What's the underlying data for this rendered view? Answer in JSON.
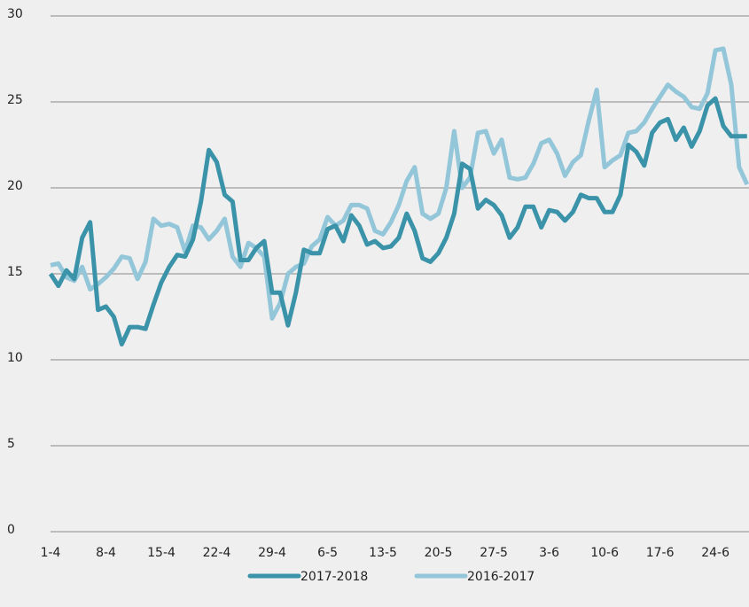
{
  "chart_data": {
    "type": "line",
    "categories": [
      "1-4",
      null,
      null,
      null,
      null,
      null,
      null,
      "8-4",
      null,
      null,
      null,
      null,
      null,
      null,
      "15-4",
      null,
      null,
      null,
      null,
      null,
      null,
      "22-4",
      null,
      null,
      null,
      null,
      null,
      null,
      "29-4",
      null,
      null,
      null,
      null,
      null,
      null,
      "6-5",
      null,
      null,
      null,
      null,
      null,
      null,
      "13-5",
      null,
      null,
      null,
      null,
      null,
      null,
      "20-5",
      null,
      null,
      null,
      null,
      null,
      null,
      "27-5",
      null,
      null,
      null,
      null,
      null,
      null,
      "3-6",
      null,
      null,
      null,
      null,
      null,
      null,
      "10-6",
      null,
      null,
      null,
      null,
      null,
      null,
      "17-6",
      null,
      null,
      null,
      null,
      null,
      null,
      "24-6",
      null,
      null,
      null,
      null
    ],
    "series": [
      {
        "name": "2017-2018",
        "color": "#3a93a8",
        "values": [
          15.0,
          14.3,
          15.2,
          14.7,
          17.1,
          18.0,
          12.9,
          13.1,
          12.5,
          10.9,
          11.9,
          11.9,
          11.8,
          13.2,
          14.5,
          15.4,
          16.1,
          16.0,
          17.0,
          19.2,
          22.2,
          21.5,
          19.6,
          19.2,
          15.8,
          15.8,
          16.5,
          16.9,
          13.9,
          13.9,
          12.0,
          13.9,
          16.4,
          16.2,
          16.2,
          17.6,
          17.8,
          16.9,
          18.4,
          17.8,
          16.7,
          16.9,
          16.5,
          16.6,
          17.1,
          18.5,
          17.5,
          15.9,
          15.7,
          16.2,
          17.1,
          18.5,
          21.4,
          21.1,
          18.8,
          19.3,
          19.0,
          18.4,
          17.1,
          17.7,
          18.9,
          18.9,
          17.7,
          18.7,
          18.6,
          18.1,
          18.6,
          19.6,
          19.4,
          19.4,
          18.6,
          18.6,
          19.6,
          22.5,
          22.1,
          21.3,
          23.2,
          23.8,
          24.0,
          22.8,
          23.5,
          22.4,
          23.3,
          24.8,
          25.2,
          23.6,
          23.0,
          23.0,
          23.0
        ]
      },
      {
        "name": "2016-2017",
        "color": "#93c6d9",
        "values": [
          15.5,
          15.6,
          14.8,
          14.6,
          15.4,
          14.1,
          14.4,
          14.8,
          15.3,
          16.0,
          15.9,
          14.7,
          15.7,
          18.2,
          17.8,
          17.9,
          17.7,
          16.3,
          17.8,
          17.7,
          17.0,
          17.5,
          18.2,
          16.0,
          15.4,
          16.8,
          16.5,
          16.0,
          12.4,
          13.3,
          15.0,
          15.4,
          15.6,
          16.6,
          17.0,
          18.3,
          17.8,
          18.1,
          19.0,
          19.0,
          18.8,
          17.5,
          17.3,
          18.0,
          19.0,
          20.4,
          21.2,
          18.5,
          18.2,
          18.5,
          20.0,
          23.3,
          20.0,
          20.6,
          23.2,
          23.3,
          22.0,
          22.8,
          20.6,
          20.5,
          20.6,
          21.4,
          22.6,
          22.8,
          22.0,
          20.7,
          21.5,
          21.9,
          23.9,
          25.7,
          21.2,
          21.6,
          21.9,
          23.2,
          23.3,
          23.8,
          24.6,
          25.3,
          26.0,
          25.6,
          25.3,
          24.7,
          24.6,
          25.5,
          28.0,
          28.1,
          26.0,
          21.2,
          20.2
        ]
      }
    ],
    "ylim": [
      0,
      30
    ],
    "yticks": [
      0,
      5,
      10,
      15,
      20,
      25,
      30
    ],
    "grid": true,
    "legend": "bottom"
  }
}
